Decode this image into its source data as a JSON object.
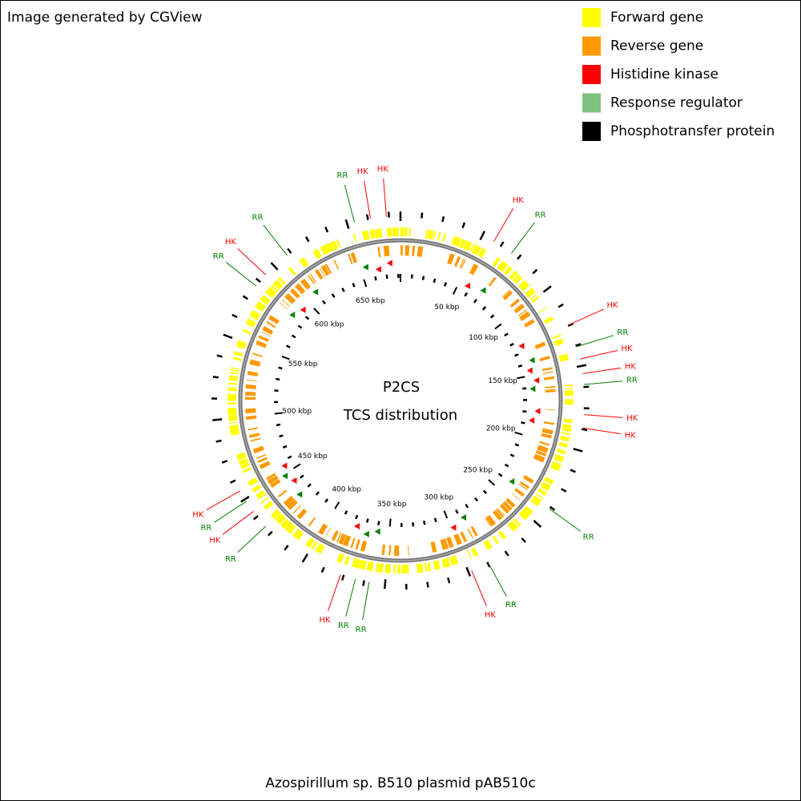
{
  "header": {
    "credit": "Image generated by CGView"
  },
  "legend": [
    {
      "name": "Forward gene",
      "color": "#ffff00"
    },
    {
      "name": "Reverse gene",
      "color": "#ff9900"
    },
    {
      "name": "Histidine kinase",
      "color": "#ff0000"
    },
    {
      "name": "Response regulator",
      "color": "#80c080"
    },
    {
      "name": "Phosphotransfer protein",
      "color": "#000000"
    }
  ],
  "center": {
    "title": "P2CS",
    "subtitle": "TCS distribution"
  },
  "scale_labels": [
    "50 kbp",
    "100 kbp",
    "150 kbp",
    "200 kbp",
    "250 kbp",
    "300 kbp",
    "350 kbp",
    "400 kbp",
    "450 kbp",
    "500 kbp",
    "550 kbp",
    "600 kbp",
    "650 kbp"
  ],
  "features": [
    {
      "text": "RR",
      "color": "#008000"
    },
    {
      "text": "HK",
      "color": "#ff0000"
    },
    {
      "text": "HK",
      "color": "#ff0000"
    },
    {
      "text": "HK",
      "color": "#ff0000"
    },
    {
      "text": "RR",
      "color": "#008000"
    },
    {
      "text": "HK",
      "color": "#ff0000"
    },
    {
      "text": "RR",
      "color": "#008000"
    },
    {
      "text": "HK",
      "color": "#ff0000"
    },
    {
      "text": "HK",
      "color": "#ff0000"
    },
    {
      "text": "RR",
      "color": "#008000"
    },
    {
      "text": "HK",
      "color": "#ff0000"
    },
    {
      "text": "HK",
      "color": "#ff0000"
    },
    {
      "text": "RR",
      "color": "#008000"
    },
    {
      "text": "RR",
      "color": "#008000"
    },
    {
      "text": "HK",
      "color": "#ff0000"
    },
    {
      "text": "RR",
      "color": "#008000"
    },
    {
      "text": "RR",
      "color": "#008000"
    },
    {
      "text": "HK",
      "color": "#ff0000"
    },
    {
      "text": "RR",
      "color": "#008000"
    },
    {
      "text": "HK",
      "color": "#ff0000"
    },
    {
      "text": "RR",
      "color": "#008000"
    },
    {
      "text": "HK",
      "color": "#ff0000"
    },
    {
      "text": "RR",
      "color": "#008000"
    },
    {
      "text": "HK",
      "color": "#ff0000"
    },
    {
      "text": "RR",
      "color": "#008000"
    }
  ],
  "footer": {
    "caption": "Azospirillum sp. B510 plasmid pAB510c"
  }
}
